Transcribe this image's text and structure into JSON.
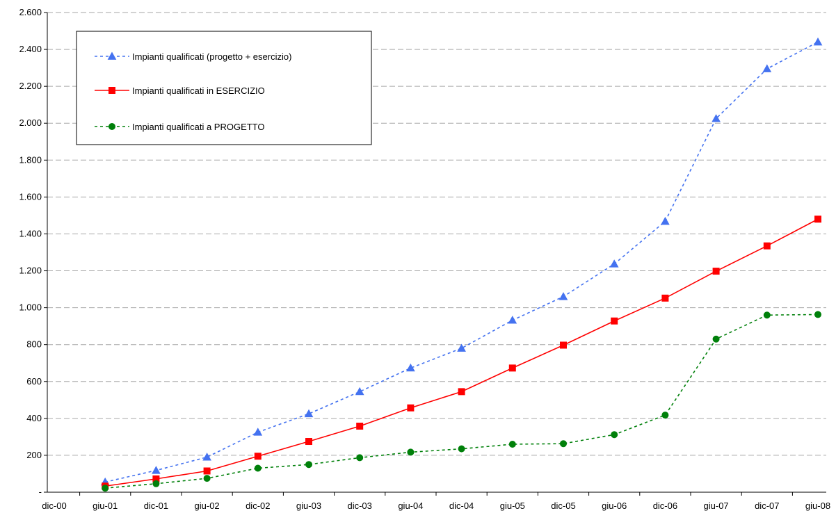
{
  "chart_data": {
    "type": "line",
    "title": "",
    "xlabel": "",
    "ylabel": "",
    "categories": [
      "dic-00",
      "giu-01",
      "dic-01",
      "giu-02",
      "dic-02",
      "giu-03",
      "dic-03",
      "giu-04",
      "dic-04",
      "giu-05",
      "dic-05",
      "giu-06",
      "dic-06",
      "giu-07",
      "dic-07",
      "giu-08"
    ],
    "ylim": [
      0,
      2600
    ],
    "yticks": [
      0,
      200,
      400,
      600,
      800,
      1000,
      1200,
      1400,
      1600,
      1800,
      2000,
      2200,
      2400,
      2600
    ],
    "ytick_labels": [
      "-",
      "200",
      "400",
      "600",
      "800",
      "1.000",
      "1.200",
      "1.400",
      "1.600",
      "1.800",
      "2.000",
      "2.200",
      "2.400",
      "2.600"
    ],
    "grid": true,
    "legend_position": "top-left",
    "series": [
      {
        "name": "Impianti qualificati (progetto + esercizio)",
        "color": "#4472f0",
        "line_style": "dotted",
        "marker": "triangle",
        "values": [
          null,
          55,
          118,
          190,
          325,
          425,
          545,
          673,
          780,
          932,
          1060,
          1237,
          1468,
          2025,
          2295,
          2440
        ]
      },
      {
        "name": "Impianti qualificati in ESERCIZIO",
        "color": "#ff0000",
        "line_style": "solid",
        "marker": "square",
        "values": [
          null,
          33,
          72,
          115,
          195,
          275,
          358,
          457,
          545,
          673,
          797,
          928,
          1052,
          1198,
          1335,
          1480
        ]
      },
      {
        "name": "Impianti qualificati a PROGETTO",
        "color": "#00800a",
        "line_style": "dotted",
        "marker": "circle",
        "values": [
          null,
          22,
          46,
          75,
          130,
          150,
          187,
          217,
          235,
          260,
          263,
          312,
          418,
          830,
          960,
          963
        ]
      }
    ]
  }
}
